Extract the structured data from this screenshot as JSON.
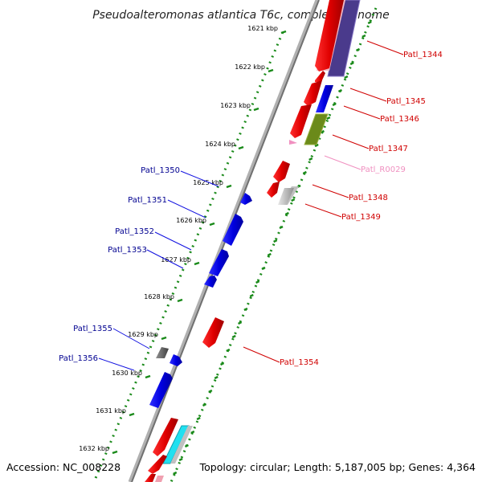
{
  "title": "Pseudoalteromonas atlantica T6c, complete genome",
  "footer": {
    "accession": "Accession: NC_008228",
    "topology": "Topology: circular; Length: 5,187,005 bp; Genes: 4,364"
  },
  "colors": {
    "forward_gene": "#1010e0",
    "reverse_gene": "#e01010",
    "pseudo_gene": "#808080",
    "rna_gene": "#f090c0",
    "forward_label": "#000090",
    "reverse_label": "#d00000",
    "rna_label": "#f090c0",
    "backbone": "#888888",
    "dotted_track": "#1a8a1a",
    "cog_purple": "#4a3a8c",
    "cog_olive": "#6b8a1a",
    "cog_cyan": "#20e0f0",
    "cog_grey": "#c0c0c0",
    "cog_pink": "#f0a0b0"
  },
  "ticks": [
    {
      "label": "1621 kbp"
    },
    {
      "label": "1622 kbp"
    },
    {
      "label": "1623 kbp"
    },
    {
      "label": "1624 kbp"
    },
    {
      "label": "1625 kbp"
    },
    {
      "label": "1626 kbp"
    },
    {
      "label": "1627 kbp"
    },
    {
      "label": "1628 kbp"
    },
    {
      "label": "1629 kbp"
    },
    {
      "label": "1630 kbp"
    },
    {
      "label": "1631 kbp"
    },
    {
      "label": "1632 kbp"
    }
  ],
  "forward_genes": [
    {
      "name": "Patl_1350"
    },
    {
      "name": "Patl_1351"
    },
    {
      "name": "Patl_1352"
    },
    {
      "name": "Patl_1353"
    },
    {
      "name": "Patl_1355"
    },
    {
      "name": "Patl_1356"
    }
  ],
  "reverse_genes": [
    {
      "name": "Patl_1344"
    },
    {
      "name": "Patl_1345"
    },
    {
      "name": "Patl_1346"
    },
    {
      "name": "Patl_1347"
    },
    {
      "name": "Patl_R0029"
    },
    {
      "name": "Patl_1348"
    },
    {
      "name": "Patl_1349"
    },
    {
      "name": "Patl_1354"
    }
  ]
}
